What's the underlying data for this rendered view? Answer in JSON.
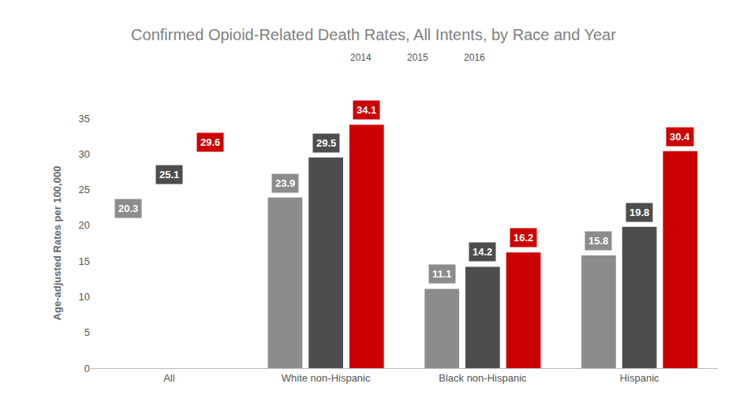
{
  "chart_data": {
    "type": "bar",
    "title": "Confirmed Opioid-Related Death Rates, All Intents, by Race and Year",
    "y_label": "Age-adjusted Rates per 100,000",
    "categories": [
      "All",
      "White non-Hispanic",
      "Black non-Hispanic",
      "Hispanic"
    ],
    "series": [
      {
        "name": "2014",
        "color": "#8c8c8c",
        "values": [
          20.3,
          23.9,
          11.1,
          15.8
        ]
      },
      {
        "name": "2015",
        "color": "#4d4d4d",
        "values": [
          25.1,
          29.5,
          14.2,
          19.8
        ]
      },
      {
        "name": "2016",
        "color": "#cc0000",
        "values": [
          29.6,
          34.1,
          16.2,
          30.4
        ]
      }
    ],
    "ylim": [
      0,
      35
    ],
    "yticks": [
      0,
      5,
      10,
      15,
      20,
      25,
      30,
      35
    ],
    "grid": false,
    "legend": "top",
    "data_labels": true
  }
}
